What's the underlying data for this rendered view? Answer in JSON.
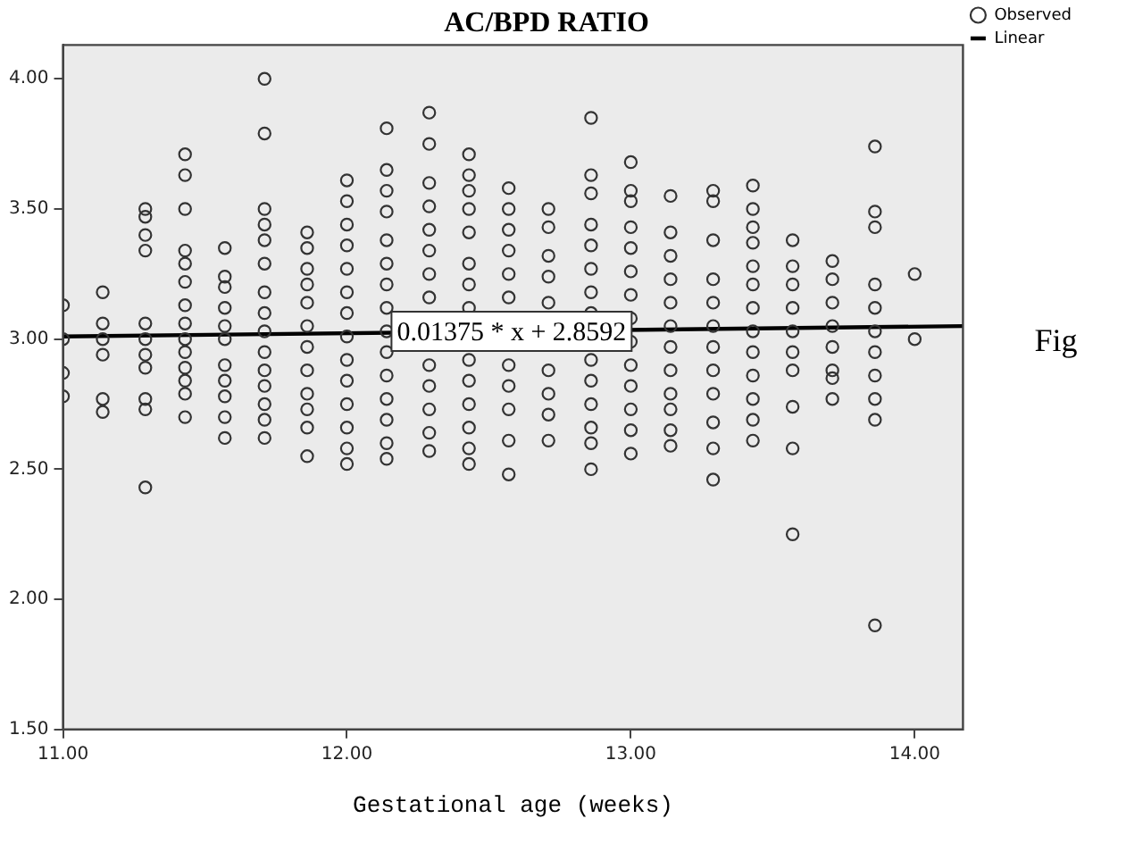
{
  "chart_data": {
    "type": "scatter",
    "title": "AC/BPD RATIO",
    "xlabel": "Gestational age (weeks)",
    "xlim": [
      11,
      14.17
    ],
    "ylim": [
      1.5,
      4.13
    ],
    "xticks": [
      {
        "value": 11,
        "label": "11.00"
      },
      {
        "value": 12,
        "label": "12.00"
      },
      {
        "value": 13,
        "label": "13.00"
      },
      {
        "value": 14,
        "label": "14.00"
      }
    ],
    "yticks": [
      {
        "value": 1.5,
        "label": "1.50"
      },
      {
        "value": 2,
        "label": "2.00"
      },
      {
        "value": 2.5,
        "label": "2.50"
      },
      {
        "value": 3,
        "label": "3.00"
      },
      {
        "value": 3.5,
        "label": "3.50"
      },
      {
        "value": 4,
        "label": "4.00"
      }
    ],
    "grid": false,
    "legend": "top right",
    "annotations": [
      {
        "text": "0.01375 * x + 2.8592",
        "x": 12.58,
        "y": 3.03
      },
      "Fig"
    ],
    "series": [
      {
        "name": "Observed",
        "type": "scatter",
        "marker": "circle",
        "color": "#333333",
        "x": [
          11,
          11,
          11,
          11,
          11.14,
          11.14,
          11.14,
          11.14,
          11.14,
          11.14,
          11.29,
          11.29,
          11.29,
          11.29,
          11.29,
          11.29,
          11.29,
          11.29,
          11.29,
          11.29,
          11.29,
          11.43,
          11.43,
          11.43,
          11.43,
          11.43,
          11.43,
          11.43,
          11.43,
          11.43,
          11.43,
          11.43,
          11.43,
          11.43,
          11.43,
          11.57,
          11.57,
          11.57,
          11.57,
          11.57,
          11.57,
          11.57,
          11.57,
          11.57,
          11.57,
          11.57,
          11.71,
          11.71,
          11.71,
          11.71,
          11.71,
          11.71,
          11.71,
          11.71,
          11.71,
          11.71,
          11.71,
          11.71,
          11.71,
          11.71,
          11.71,
          11.86,
          11.86,
          11.86,
          11.86,
          11.86,
          11.86,
          11.86,
          11.86,
          11.86,
          11.86,
          11.86,
          11.86,
          12,
          12,
          12,
          12,
          12,
          12,
          12,
          12,
          12,
          12,
          12,
          12,
          12,
          12,
          12.14,
          12.14,
          12.14,
          12.14,
          12.14,
          12.14,
          12.14,
          12.14,
          12.14,
          12.14,
          12.14,
          12.14,
          12.14,
          12.14,
          12.14,
          12.29,
          12.29,
          12.29,
          12.29,
          12.29,
          12.29,
          12.29,
          12.29,
          12.29,
          12.29,
          12.29,
          12.29,
          12.29,
          12.43,
          12.43,
          12.43,
          12.43,
          12.43,
          12.43,
          12.43,
          12.43,
          12.43,
          12.43,
          12.43,
          12.43,
          12.43,
          12.43,
          12.57,
          12.57,
          12.57,
          12.57,
          12.57,
          12.57,
          12.57,
          12.57,
          12.57,
          12.57,
          12.57,
          12.71,
          12.71,
          12.71,
          12.71,
          12.71,
          12.71,
          12.71,
          12.71,
          12.71,
          12.86,
          12.86,
          12.86,
          12.86,
          12.86,
          12.86,
          12.86,
          12.86,
          12.86,
          12.86,
          12.86,
          12.86,
          12.86,
          12.86,
          13,
          13,
          13,
          13,
          13,
          13,
          13,
          13,
          13,
          13,
          13,
          13,
          13,
          13,
          13.14,
          13.14,
          13.14,
          13.14,
          13.14,
          13.14,
          13.14,
          13.14,
          13.14,
          13.14,
          13.14,
          13.14,
          13.29,
          13.29,
          13.29,
          13.29,
          13.29,
          13.29,
          13.29,
          13.29,
          13.29,
          13.29,
          13.29,
          13.29,
          13.43,
          13.43,
          13.43,
          13.43,
          13.43,
          13.43,
          13.43,
          13.43,
          13.43,
          13.43,
          13.43,
          13.43,
          13.43,
          13.57,
          13.57,
          13.57,
          13.57,
          13.57,
          13.57,
          13.57,
          13.57,
          13.57,
          13.57,
          13.71,
          13.71,
          13.71,
          13.71,
          13.71,
          13.71,
          13.71,
          13.71,
          13.86,
          13.86,
          13.86,
          13.86,
          13.86,
          13.86,
          13.86,
          13.86,
          13.86,
          13.86,
          13.86,
          14,
          14
        ],
        "values": [
          3.13,
          3.0,
          2.87,
          2.78,
          3.18,
          3.06,
          3.0,
          2.94,
          2.77,
          2.72,
          3.5,
          3.47,
          3.4,
          3.34,
          3.06,
          3.0,
          2.94,
          2.89,
          2.77,
          2.73,
          2.43,
          3.71,
          3.63,
          3.5,
          3.34,
          3.29,
          3.22,
          3.13,
          3.06,
          3.0,
          2.95,
          2.89,
          2.84,
          2.79,
          2.7,
          3.35,
          3.24,
          3.2,
          3.12,
          3.05,
          3.0,
          2.9,
          2.84,
          2.78,
          2.7,
          2.62,
          4.0,
          3.79,
          3.5,
          3.44,
          3.38,
          3.29,
          3.18,
          3.1,
          3.03,
          2.95,
          2.88,
          2.82,
          2.75,
          2.69,
          2.62,
          3.41,
          3.35,
          3.27,
          3.21,
          3.14,
          3.05,
          2.97,
          2.88,
          2.79,
          2.73,
          2.66,
          2.55,
          3.61,
          3.53,
          3.44,
          3.36,
          3.27,
          3.18,
          3.1,
          3.01,
          2.92,
          2.84,
          2.75,
          2.66,
          2.58,
          2.52,
          3.81,
          3.65,
          3.57,
          3.49,
          3.38,
          3.29,
          3.21,
          3.12,
          3.03,
          2.95,
          2.86,
          2.77,
          2.69,
          2.6,
          2.54,
          3.87,
          3.75,
          3.6,
          3.51,
          3.42,
          3.34,
          3.25,
          3.16,
          2.9,
          2.82,
          2.73,
          2.64,
          2.57,
          3.71,
          3.63,
          3.57,
          3.5,
          3.41,
          3.29,
          3.21,
          3.12,
          2.92,
          2.84,
          2.75,
          2.66,
          2.58,
          2.52,
          3.58,
          3.5,
          3.42,
          3.34,
          3.25,
          3.16,
          2.9,
          2.82,
          2.73,
          2.61,
          2.48,
          3.5,
          3.43,
          3.32,
          3.24,
          3.14,
          2.88,
          2.79,
          2.71,
          2.61,
          3.85,
          3.63,
          3.56,
          3.44,
          3.36,
          3.27,
          3.18,
          3.1,
          2.92,
          2.84,
          2.75,
          2.66,
          2.6,
          2.5,
          3.68,
          3.57,
          3.53,
          3.43,
          3.35,
          3.26,
          3.17,
          3.08,
          2.99,
          2.9,
          2.82,
          2.73,
          2.65,
          2.56,
          3.55,
          3.41,
          3.32,
          3.23,
          3.14,
          3.05,
          2.97,
          2.88,
          2.79,
          2.73,
          2.65,
          2.59,
          3.57,
          3.53,
          3.38,
          3.23,
          3.14,
          3.05,
          2.97,
          2.88,
          2.79,
          2.68,
          2.58,
          2.46,
          3.59,
          3.5,
          3.43,
          3.37,
          3.28,
          3.21,
          3.12,
          3.03,
          2.95,
          2.86,
          2.77,
          2.69,
          2.61,
          3.38,
          3.28,
          3.21,
          3.12,
          3.03,
          2.95,
          2.88,
          2.74,
          2.58,
          2.25,
          3.3,
          3.23,
          3.14,
          3.05,
          2.97,
          2.88,
          2.85,
          2.77,
          3.74,
          3.49,
          3.43,
          3.21,
          3.12,
          3.03,
          2.95,
          2.86,
          2.77,
          2.69,
          1.9,
          3.25,
          3.0
        ]
      },
      {
        "name": "Linear",
        "type": "line",
        "marker": "none",
        "line_style": "solid",
        "color": "#000000",
        "x": [
          11,
          14.17
        ],
        "values": [
          3.01,
          3.05
        ]
      }
    ]
  }
}
